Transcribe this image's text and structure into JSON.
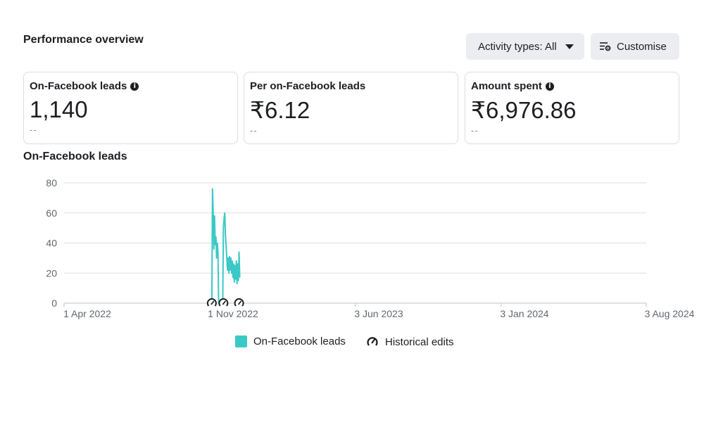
{
  "header": {
    "title": "Performance overview",
    "activity_label": "Activity types: All",
    "customise_label": "Customise"
  },
  "cards": [
    {
      "label": "On-Facebook leads",
      "has_info": true,
      "value": "1,140",
      "delta": "--"
    },
    {
      "label": "Per on-Facebook leads",
      "has_info": false,
      "value": "₹6.12",
      "delta": "--"
    },
    {
      "label": "Amount spent",
      "has_info": true,
      "value": "₹6,976.86",
      "delta": "--"
    }
  ],
  "chart_title": "On-Facebook leads",
  "legend": {
    "series_label": "On-Facebook leads",
    "edits_label": "Historical edits"
  },
  "colors": {
    "series": "#3ac9c6",
    "grid": "#dadde1",
    "button_bg": "#ebedf0"
  },
  "chart_data": {
    "type": "line",
    "title": "",
    "xlabel": "",
    "ylabel": "",
    "ylim": [
      0,
      80
    ],
    "yticks": [
      0,
      20,
      40,
      60,
      80
    ],
    "xlim": [
      "2022-04-01",
      "2024-08-03"
    ],
    "xticks": [
      {
        "date": "2022-04-01",
        "label": "1 Apr 2022"
      },
      {
        "date": "2022-11-01",
        "label": "1 Nov 2022"
      },
      {
        "date": "2023-06-03",
        "label": "3 Jun 2023"
      },
      {
        "date": "2024-01-03",
        "label": "3 Jan 2024"
      },
      {
        "date": "2024-08-03",
        "label": "3 Aug 2024"
      }
    ],
    "grid": true,
    "legend_position": "bottom",
    "series": [
      {
        "name": "On-Facebook leads",
        "points": [
          [
            "2022-11-04",
            0
          ],
          [
            "2022-11-05",
            76
          ],
          [
            "2022-11-06",
            60
          ],
          [
            "2022-11-07",
            36
          ],
          [
            "2022-11-08",
            58
          ],
          [
            "2022-11-09",
            39
          ],
          [
            "2022-11-10",
            44
          ],
          [
            "2022-11-11",
            30
          ],
          [
            "2022-11-12",
            40
          ],
          [
            "2022-11-13",
            34
          ],
          [
            "2022-11-14",
            0
          ],
          [
            "2022-11-15",
            0
          ],
          [
            "2022-11-16",
            0
          ],
          [
            "2022-11-17",
            0
          ],
          [
            "2022-11-18",
            0
          ],
          [
            "2022-11-19",
            0
          ],
          [
            "2022-11-20",
            0
          ],
          [
            "2022-11-21",
            50
          ],
          [
            "2022-11-22",
            56
          ],
          [
            "2022-11-23",
            60
          ],
          [
            "2022-11-24",
            45
          ],
          [
            "2022-11-25",
            38
          ],
          [
            "2022-11-26",
            30
          ],
          [
            "2022-11-27",
            22
          ],
          [
            "2022-11-28",
            30
          ],
          [
            "2022-11-29",
            20
          ],
          [
            "2022-11-30",
            31
          ],
          [
            "2022-12-01",
            22
          ],
          [
            "2022-12-02",
            30
          ],
          [
            "2022-12-03",
            20
          ],
          [
            "2022-12-04",
            28
          ],
          [
            "2022-12-05",
            17
          ],
          [
            "2022-12-06",
            26
          ],
          [
            "2022-12-07",
            14
          ],
          [
            "2022-12-08",
            25
          ],
          [
            "2022-12-09",
            16
          ],
          [
            "2022-12-10",
            28
          ],
          [
            "2022-12-11",
            13
          ],
          [
            "2022-12-12",
            26
          ],
          [
            "2022-12-13",
            15
          ],
          [
            "2022-12-14",
            34
          ],
          [
            "2022-12-15",
            17
          ]
        ]
      }
    ],
    "historical_edits": [
      "2022-11-04",
      "2022-11-21",
      "2022-12-14"
    ]
  }
}
